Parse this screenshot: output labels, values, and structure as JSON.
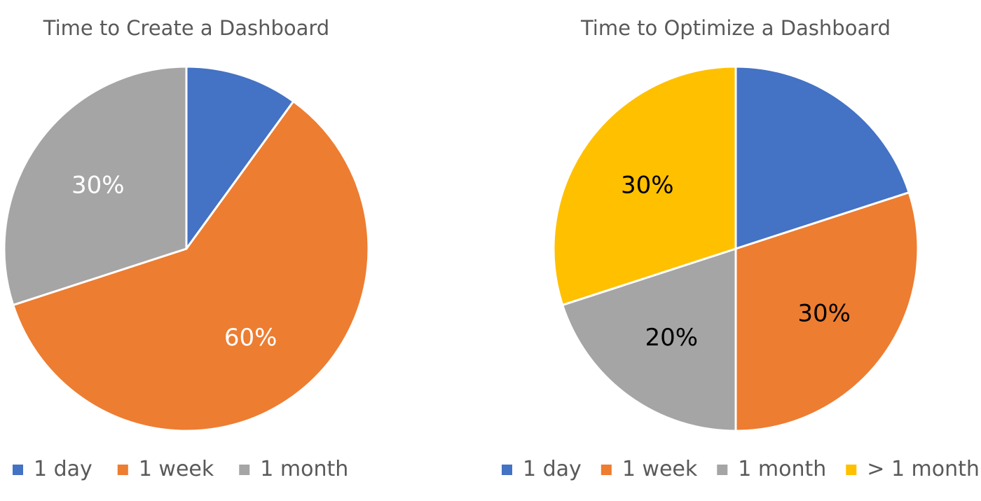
{
  "chart_data": [
    {
      "type": "pie",
      "title": "Time to Create a Dashboard",
      "slices": [
        {
          "label": "1 day",
          "value": 10,
          "color": "#4472C4",
          "data_label": "",
          "label_color": "#ffffff"
        },
        {
          "label": "1 week",
          "value": 60,
          "color": "#ED7D31",
          "data_label": "60%",
          "label_color": "#ffffff"
        },
        {
          "label": "1 month",
          "value": 30,
          "color": "#A5A5A5",
          "data_label": "30%",
          "label_color": "#ffffff"
        }
      ],
      "legend": [
        "1 day",
        "1 week",
        "1 month"
      ],
      "legend_position": "bottom"
    },
    {
      "type": "pie",
      "title": "Time to Optimize a Dashboard",
      "slices": [
        {
          "label": "1 day",
          "value": 20,
          "color": "#4472C4",
          "data_label": "",
          "label_color": "#000000"
        },
        {
          "label": "1 week",
          "value": 30,
          "color": "#ED7D31",
          "data_label": "30%",
          "label_color": "#000000"
        },
        {
          "label": "1 month",
          "value": 20,
          "color": "#A5A5A5",
          "data_label": "20%",
          "label_color": "#000000"
        },
        {
          "label": "> 1 month",
          "value": 30,
          "color": "#FFC000",
          "data_label": "30%",
          "label_color": "#000000"
        }
      ],
      "legend": [
        "1 day",
        "1 week",
        "1 month",
        "> 1 month"
      ],
      "legend_position": "bottom"
    }
  ]
}
